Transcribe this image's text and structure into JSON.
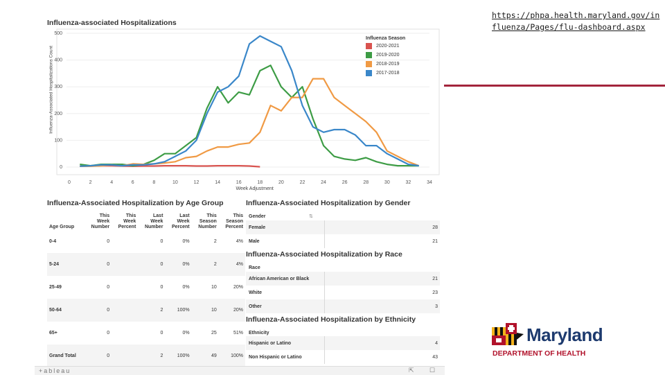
{
  "url": "https://phpa.health.maryland.gov/influenza/Pages/flu-dashboard.aspx",
  "chart_data": {
    "type": "line",
    "title": "Influenza-associated Hospitalizations",
    "xlabel": "Week Adjustment",
    "ylabel": "Influenza-Associated Hospitalizations Count",
    "x_ticks": [
      0,
      2,
      4,
      6,
      8,
      10,
      12,
      14,
      16,
      18,
      20,
      22,
      24,
      26,
      28,
      30,
      32,
      34
    ],
    "y_ticks": [
      0,
      100,
      200,
      300,
      400,
      500
    ],
    "xlim": [
      0,
      34
    ],
    "ylim": [
      0,
      500
    ],
    "legend_title": "Influenza Season",
    "legend_position": "top-right",
    "series": [
      {
        "name": "2020-2021",
        "color": "#d9534f",
        "x": [
          1,
          2,
          3,
          4,
          5,
          6,
          7,
          8,
          9,
          10,
          11,
          12,
          13,
          14,
          15,
          16,
          17,
          18
        ],
        "y": [
          3,
          4,
          5,
          5,
          4,
          3,
          4,
          4,
          5,
          5,
          5,
          4,
          4,
          5,
          5,
          5,
          4,
          1
        ]
      },
      {
        "name": "2019-2020",
        "color": "#3d9c45",
        "x": [
          1,
          2,
          3,
          4,
          5,
          6,
          7,
          8,
          9,
          10,
          11,
          12,
          13,
          14,
          15,
          16,
          17,
          18,
          19,
          20,
          21,
          22,
          23,
          24,
          25,
          26,
          27,
          28,
          29,
          30,
          31,
          32,
          33
        ],
        "y": [
          10,
          5,
          10,
          10,
          10,
          5,
          10,
          25,
          50,
          50,
          80,
          110,
          220,
          300,
          240,
          280,
          270,
          360,
          380,
          300,
          260,
          300,
          180,
          80,
          40,
          30,
          25,
          35,
          20,
          10,
          5,
          5,
          5
        ]
      },
      {
        "name": "2018-2019",
        "color": "#f09a44",
        "x": [
          1,
          2,
          3,
          4,
          5,
          6,
          7,
          8,
          9,
          10,
          11,
          12,
          13,
          14,
          15,
          16,
          17,
          18,
          19,
          20,
          21,
          22,
          23,
          24,
          25,
          26,
          27,
          28,
          29,
          30,
          31,
          32,
          33
        ],
        "y": [
          3,
          3,
          5,
          8,
          5,
          12,
          10,
          12,
          15,
          20,
          35,
          40,
          60,
          75,
          75,
          85,
          90,
          130,
          230,
          210,
          260,
          260,
          330,
          330,
          260,
          230,
          200,
          170,
          130,
          60,
          40,
          20,
          5
        ]
      },
      {
        "name": "2017-2018",
        "color": "#3a87c9",
        "x": [
          1,
          2,
          3,
          4,
          5,
          6,
          7,
          8,
          9,
          10,
          11,
          12,
          13,
          14,
          15,
          16,
          17,
          18,
          19,
          20,
          21,
          22,
          23,
          24,
          25,
          26,
          27,
          28,
          29,
          30,
          31,
          32,
          33
        ],
        "y": [
          3,
          5,
          8,
          8,
          5,
          8,
          8,
          12,
          20,
          40,
          60,
          100,
          200,
          280,
          300,
          340,
          460,
          490,
          470,
          450,
          360,
          230,
          150,
          130,
          140,
          140,
          120,
          80,
          80,
          50,
          30,
          10,
          5
        ]
      }
    ]
  },
  "age_panel": {
    "title": "Influenza-Associated Hospitalization by Age Group",
    "headers": [
      "Age Group",
      "This Week Number",
      "This Week Percent",
      "Last Week Number",
      "Last Week Percent",
      "This Season Number",
      "This Season Percent"
    ],
    "header_lines": [
      [
        "Age Group"
      ],
      [
        "This",
        "Week",
        "Number"
      ],
      [
        "This",
        "Week",
        "Percent"
      ],
      [
        "Last",
        "Week",
        "Number"
      ],
      [
        "Last",
        "Week",
        "Percent"
      ],
      [
        "This",
        "Season",
        "Number"
      ],
      [
        "This",
        "Season",
        "Percent"
      ]
    ],
    "rows": [
      [
        "0-4",
        "0",
        "",
        "0",
        "0%",
        "2",
        "4%"
      ],
      [
        "5-24",
        "0",
        "",
        "0",
        "0%",
        "2",
        "4%"
      ],
      [
        "25-49",
        "0",
        "",
        "0",
        "0%",
        "10",
        "20%"
      ],
      [
        "50-64",
        "0",
        "",
        "2",
        "100%",
        "10",
        "20%"
      ],
      [
        "65+",
        "0",
        "",
        "0",
        "0%",
        "25",
        "51%"
      ],
      [
        "Grand Total",
        "0",
        "",
        "2",
        "100%",
        "49",
        "100%"
      ]
    ]
  },
  "gender_panel": {
    "title": "Influenza-Associated Hospitalization by Gender",
    "header": "Gender",
    "rows": [
      [
        "Female",
        "28"
      ],
      [
        "Male",
        "21"
      ]
    ]
  },
  "race_panel": {
    "title": "Influenza-Associated Hospitalization by Race",
    "header": "Race",
    "rows": [
      [
        "African American or Black",
        "21"
      ],
      [
        "White",
        "23"
      ],
      [
        "Other",
        "3"
      ]
    ]
  },
  "ethnicity_panel": {
    "title": "Influenza-Associated Hospitalization by Ethnicity",
    "header": "Ethnicity",
    "rows": [
      [
        "Hispanic or Latino",
        "4"
      ],
      [
        "Non Hispanic or Latino",
        "43"
      ]
    ]
  },
  "footer": {
    "brand": "+ableau"
  },
  "logo": {
    "name": "Maryland",
    "subtitle": "DEPARTMENT OF HEALTH",
    "name_color": "#1d3a6e",
    "subtitle_color": "#b1122b"
  }
}
